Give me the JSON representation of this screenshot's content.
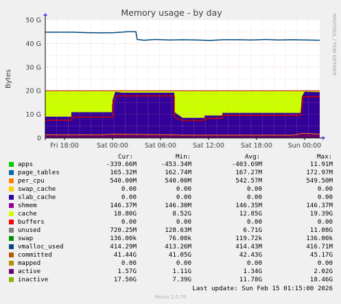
{
  "chart_data": {
    "type": "area",
    "title": "Memory usage - by day",
    "ylabel": "Bytes",
    "side_label": "RRDTOOL / TOBI OETIKER",
    "ylim": [
      0,
      50
    ],
    "yticks": [
      "0",
      "10 G",
      "20 G",
      "30 G",
      "40 G",
      "50 G"
    ],
    "xticks": [
      "Fri 18:00",
      "Sat 00:00",
      "Sat 06:00",
      "Sat 12:00",
      "Sat 18:00",
      "Sun 00:00"
    ],
    "legend_headers": {
      "cur": "Cur:",
      "min": "Min:",
      "avg": "Avg:",
      "max": "Max:"
    },
    "series": [
      {
        "name": "apps",
        "color": "#00cc00",
        "cur": "-339.66M",
        "min": "-453.34M",
        "avg": "-403.69M",
        "max": "11.91M"
      },
      {
        "name": "page_tables",
        "color": "#0066b3",
        "cur": "165.32M",
        "min": "162.74M",
        "avg": "167.27M",
        "max": "172.97M"
      },
      {
        "name": "per_cpu",
        "color": "#ff8000",
        "cur": "540.00M",
        "min": "540.00M",
        "avg": "542.57M",
        "max": "549.50M"
      },
      {
        "name": "swap_cache",
        "color": "#ffcc00",
        "cur": "0.00",
        "min": "0.00",
        "avg": "0.00",
        "max": "0.00"
      },
      {
        "name": "slab_cache",
        "color": "#330099",
        "cur": "0.00",
        "min": "0.00",
        "avg": "0.00",
        "max": "0.00"
      },
      {
        "name": "shmem",
        "color": "#990099",
        "cur": "146.37M",
        "min": "146.30M",
        "avg": "146.35M",
        "max": "146.37M"
      },
      {
        "name": "cache",
        "color": "#ccff00",
        "cur": "18.80G",
        "min": "8.52G",
        "avg": "12.85G",
        "max": "19.39G"
      },
      {
        "name": "buffers",
        "color": "#ff0000",
        "cur": "0.00",
        "min": "0.00",
        "avg": "0.00",
        "max": "0.00"
      },
      {
        "name": "unused",
        "color": "#808080",
        "cur": "720.25M",
        "min": "128.63M",
        "avg": "6.71G",
        "max": "11.08G"
      },
      {
        "name": "swap",
        "color": "#008f00",
        "cur": "136.00k",
        "min": "76.00k",
        "avg": "119.72k",
        "max": "136.00k"
      },
      {
        "name": "vmalloc_used",
        "color": "#00487d",
        "cur": "414.29M",
        "min": "413.26M",
        "avg": "414.43M",
        "max": "416.71M"
      },
      {
        "name": "committed",
        "color": "#b35a00",
        "cur": "41.44G",
        "min": "41.05G",
        "avg": "42.43G",
        "max": "45.17G"
      },
      {
        "name": "mapped",
        "color": "#b38f00",
        "cur": "0.00",
        "min": "0.00",
        "avg": "0.00",
        "max": "0.00"
      },
      {
        "name": "active",
        "color": "#6b006b",
        "cur": "1.57G",
        "min": "1.11G",
        "avg": "1.34G",
        "max": "2.02G"
      },
      {
        "name": "inactive",
        "color": "#8fb300",
        "cur": "17.50G",
        "min": "7.39G",
        "avg": "11.78G",
        "max": "18.46G"
      }
    ],
    "swatch_colors": [
      "#00cc00",
      "#0066b3",
      "#ff8000",
      "#ffcc00",
      "#330099",
      "#990099",
      "#ccff00",
      "#ff0000",
      "#808080",
      "#008f00",
      "#00487d",
      "#b35a00",
      "#b38f00",
      "#6b006b",
      "#8fb300"
    ],
    "plot_colors": {
      "bg": "#ffffff",
      "total_fill": "#ccff00",
      "total_line": "#cc0000",
      "used_fill": "#330099",
      "inactive_line": "#cc0000",
      "committed_line": "#00487d",
      "grid_major": "#e08080",
      "grid_minor": "#e0b0b0"
    },
    "total_ram_gb": 20,
    "lines": {
      "committed": [
        [
          0,
          44.8
        ],
        [
          0.05,
          44.8
        ],
        [
          0.1,
          44.8
        ],
        [
          0.15,
          44.6
        ],
        [
          0.2,
          44.5
        ],
        [
          0.25,
          44.6
        ],
        [
          0.3,
          45.0
        ],
        [
          0.33,
          45.0
        ],
        [
          0.335,
          41.7
        ],
        [
          0.36,
          41.4
        ],
        [
          0.4,
          41.7
        ],
        [
          0.45,
          41.5
        ],
        [
          0.5,
          41.6
        ],
        [
          0.55,
          41.5
        ],
        [
          0.6,
          41.3
        ],
        [
          0.65,
          41.6
        ],
        [
          0.7,
          41.6
        ],
        [
          0.75,
          41.5
        ],
        [
          0.8,
          41.7
        ],
        [
          0.85,
          41.5
        ],
        [
          0.9,
          41.6
        ],
        [
          0.95,
          41.5
        ],
        [
          1.0,
          41.4
        ]
      ],
      "used_top": [
        [
          0,
          9.0
        ],
        [
          0.095,
          9.0
        ],
        [
          0.095,
          10.9
        ],
        [
          0.245,
          10.9
        ],
        [
          0.245,
          16.0
        ],
        [
          0.255,
          19.5
        ],
        [
          0.28,
          19.2
        ],
        [
          0.47,
          19.2
        ],
        [
          0.47,
          11.0
        ],
        [
          0.5,
          8.5
        ],
        [
          0.58,
          8.5
        ],
        [
          0.58,
          9.5
        ],
        [
          0.645,
          9.5
        ],
        [
          0.645,
          10.6
        ],
        [
          0.93,
          10.6
        ],
        [
          0.935,
          17.5
        ],
        [
          0.945,
          19.6
        ],
        [
          1.0,
          19.4
        ]
      ],
      "inactive": [
        [
          0,
          7.5
        ],
        [
          0.095,
          7.5
        ],
        [
          0.095,
          8.8
        ],
        [
          0.245,
          8.8
        ],
        [
          0.245,
          14.0
        ],
        [
          0.26,
          17.8
        ],
        [
          0.47,
          17.8
        ],
        [
          0.47,
          9.0
        ],
        [
          0.5,
          7.4
        ],
        [
          0.58,
          7.4
        ],
        [
          0.58,
          8.3
        ],
        [
          0.645,
          8.3
        ],
        [
          0.645,
          9.5
        ],
        [
          0.93,
          9.5
        ],
        [
          0.94,
          17.5
        ],
        [
          1.0,
          17.5
        ]
      ],
      "active": [
        [
          0,
          1.3
        ],
        [
          0.2,
          1.3
        ],
        [
          0.25,
          1.6
        ],
        [
          0.47,
          1.3
        ],
        [
          0.5,
          1.2
        ],
        [
          0.9,
          1.2
        ],
        [
          0.94,
          2.0
        ],
        [
          1.0,
          1.6
        ]
      ]
    },
    "last_update": "Last update: Sun Feb 15 01:15:00 2026",
    "munin_version": "Munin 2.0.76"
  }
}
